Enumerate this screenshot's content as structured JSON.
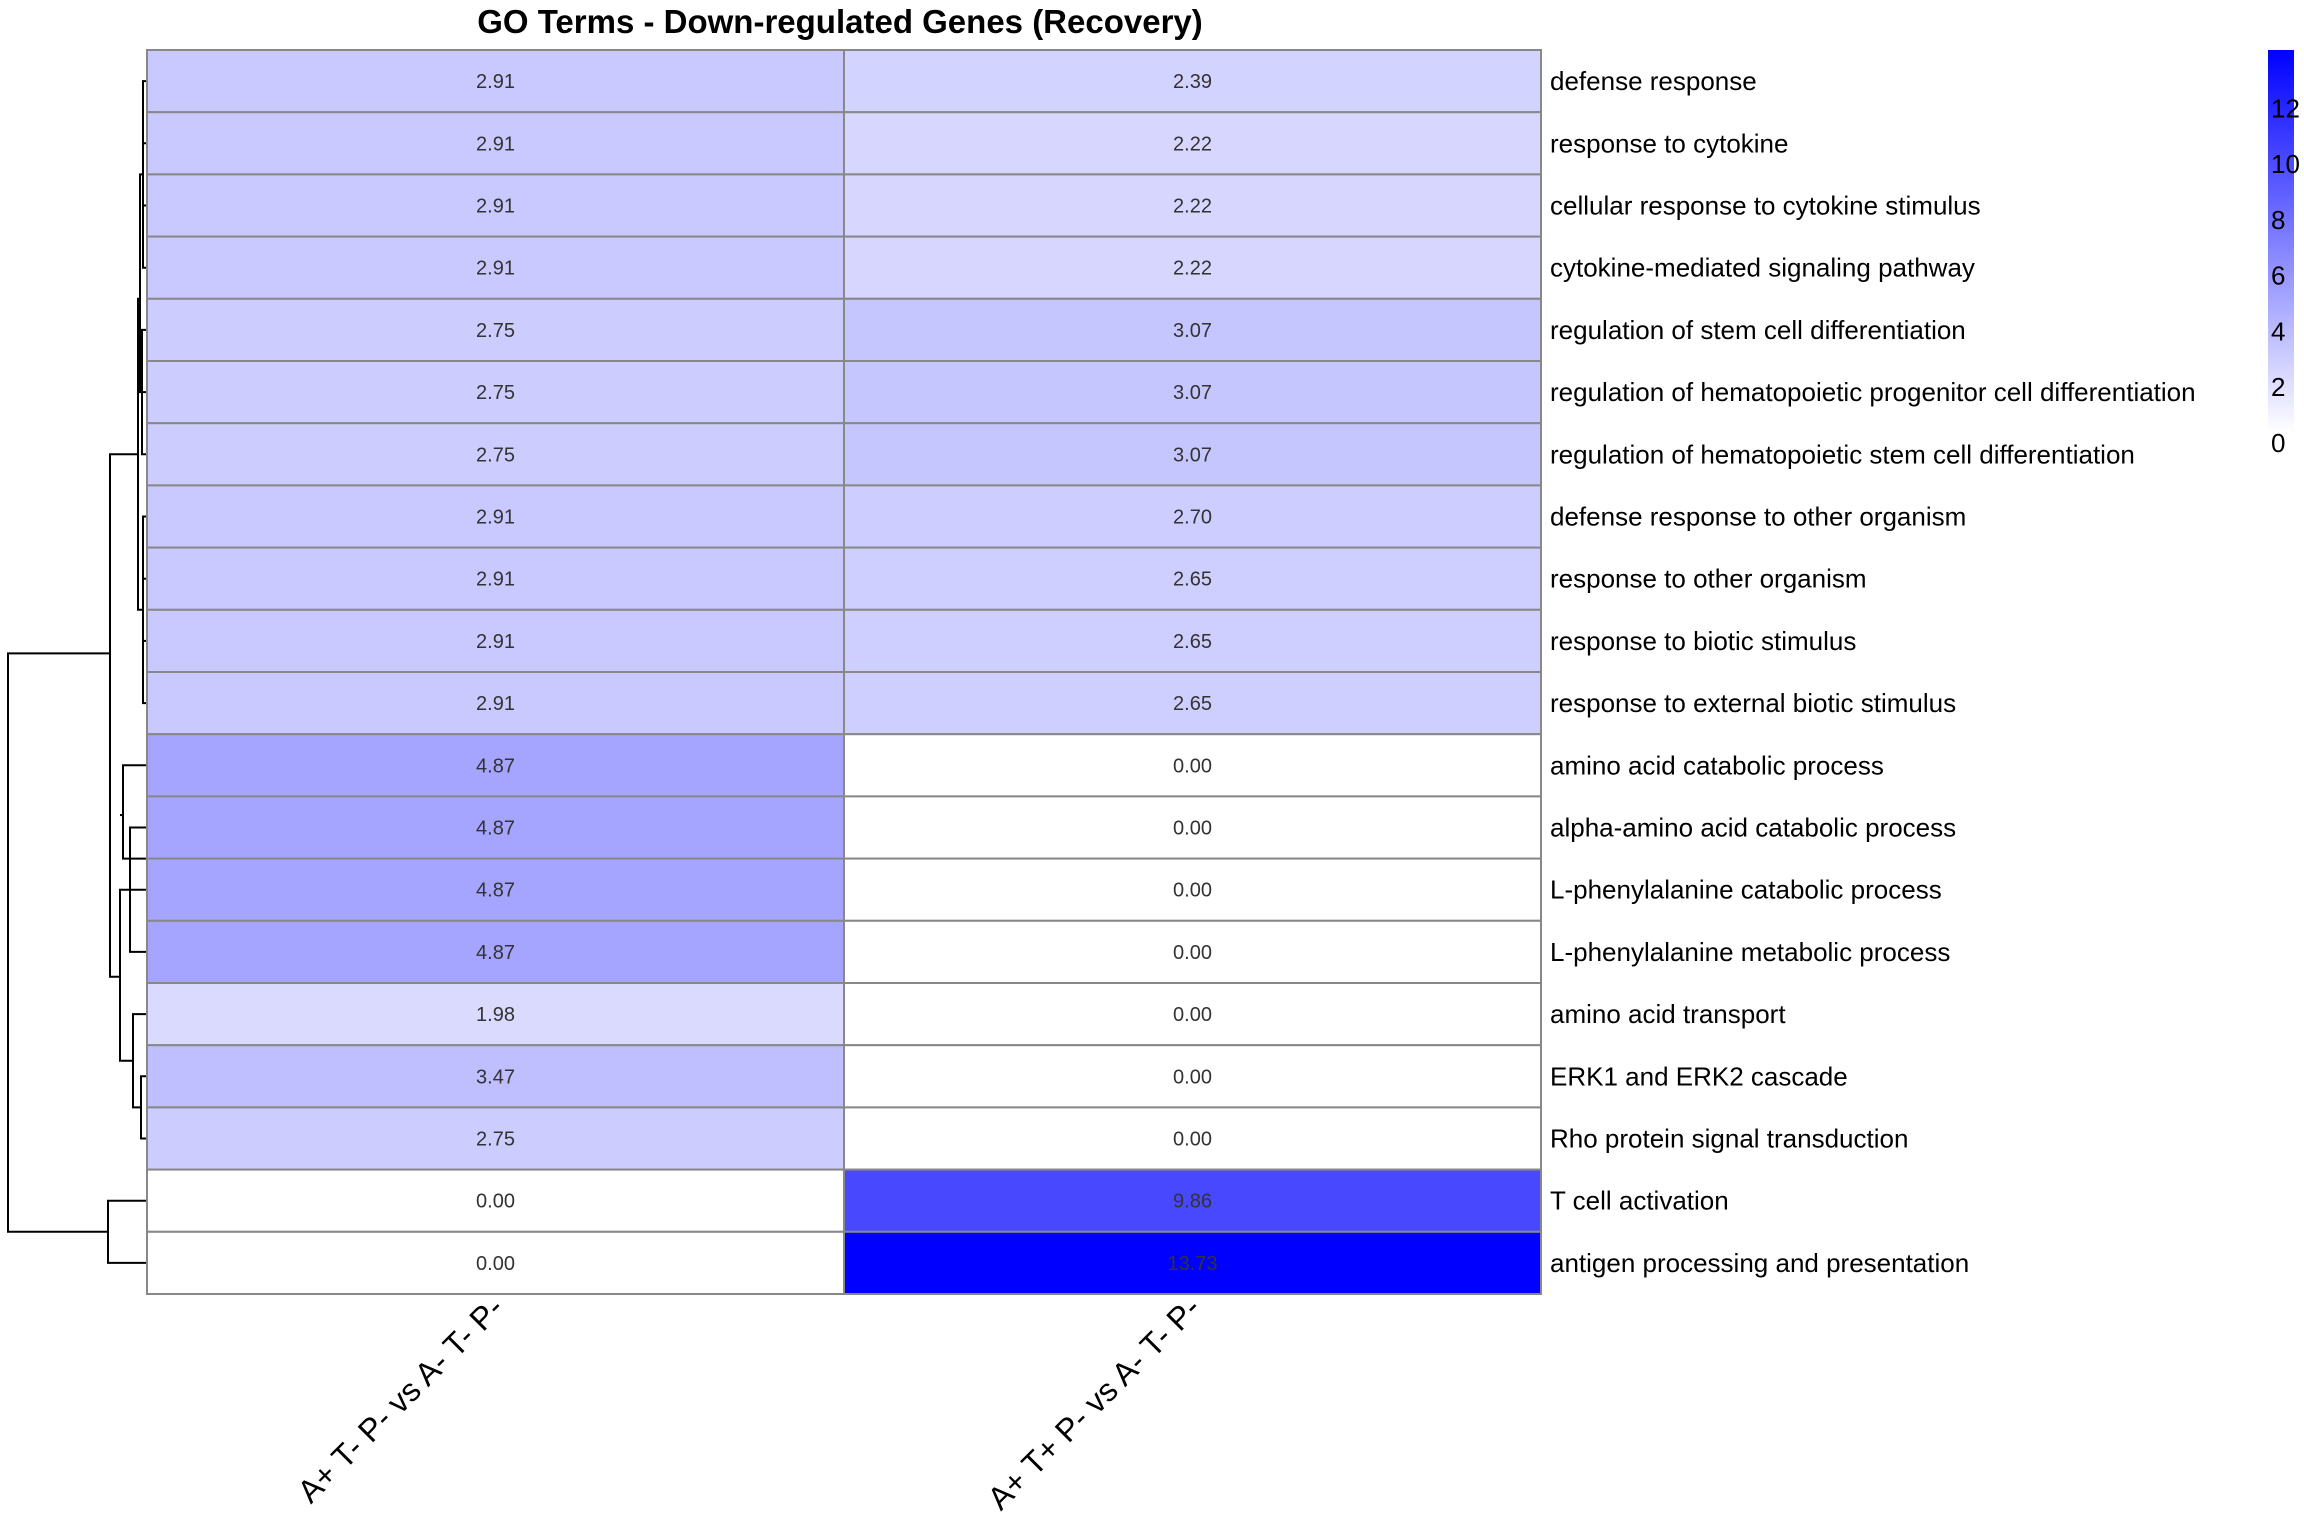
{
  "chart_data": {
    "type": "heatmap",
    "title": "GO Terms - Down-regulated Genes (Recovery)",
    "columns": [
      "A+ T- P- vs A- T- P-",
      "A+ T+ P- vs A- T- P-"
    ],
    "rows": [
      "defense response",
      "response to cytokine",
      "cellular response to cytokine stimulus",
      "cytokine-mediated signaling pathway",
      "regulation of stem cell differentiation",
      "regulation of hematopoietic progenitor cell differentiation",
      "regulation of hematopoietic stem cell differentiation",
      "defense response to other organism",
      "response to other organism",
      "response to biotic stimulus",
      "response to external biotic stimulus",
      "amino acid catabolic process",
      "alpha-amino acid catabolic process",
      "L-phenylalanine catabolic process",
      "L-phenylalanine metabolic process",
      "amino acid transport",
      "ERK1 and ERK2 cascade",
      "Rho protein signal transduction",
      "T cell activation",
      "antigen processing and presentation"
    ],
    "values": [
      [
        2.91,
        2.39
      ],
      [
        2.91,
        2.22
      ],
      [
        2.91,
        2.22
      ],
      [
        2.91,
        2.22
      ],
      [
        2.75,
        3.07
      ],
      [
        2.75,
        3.07
      ],
      [
        2.75,
        3.07
      ],
      [
        2.91,
        2.7
      ],
      [
        2.91,
        2.65
      ],
      [
        2.91,
        2.65
      ],
      [
        2.91,
        2.65
      ],
      [
        4.87,
        0.0
      ],
      [
        4.87,
        0.0
      ],
      [
        4.87,
        0.0
      ],
      [
        4.87,
        0.0
      ],
      [
        1.98,
        0.0
      ],
      [
        3.47,
        0.0
      ],
      [
        2.75,
        0.0
      ],
      [
        0.0,
        9.86
      ],
      [
        0.0,
        13.73
      ]
    ],
    "value_labels": [
      [
        "2.91",
        "2.39"
      ],
      [
        "2.91",
        "2.22"
      ],
      [
        "2.91",
        "2.22"
      ],
      [
        "2.91",
        "2.22"
      ],
      [
        "2.75",
        "3.07"
      ],
      [
        "2.75",
        "3.07"
      ],
      [
        "2.75",
        "3.07"
      ],
      [
        "2.91",
        "2.70"
      ],
      [
        "2.91",
        "2.65"
      ],
      [
        "2.91",
        "2.65"
      ],
      [
        "2.91",
        "2.65"
      ],
      [
        "4.87",
        "0.00"
      ],
      [
        "4.87",
        "0.00"
      ],
      [
        "4.87",
        "0.00"
      ],
      [
        "4.87",
        "0.00"
      ],
      [
        "1.98",
        "0.00"
      ],
      [
        "3.47",
        "0.00"
      ],
      [
        "2.75",
        "0.00"
      ],
      [
        "0.00",
        "9.86"
      ],
      [
        "0.00",
        "13.73"
      ]
    ],
    "color_scale": {
      "min": 0,
      "max": 13.73,
      "low_color": "#ffffff",
      "high_color": "#0000ff",
      "ticks": [
        0,
        2,
        4,
        6,
        8,
        10,
        12
      ],
      "tick_labels": [
        "0",
        "2",
        "4",
        "6",
        "8",
        "10",
        "12"
      ],
      "placement": "top-right"
    },
    "cell_border_color": "#888888",
    "row_dendrogram": true,
    "legend": true
  }
}
